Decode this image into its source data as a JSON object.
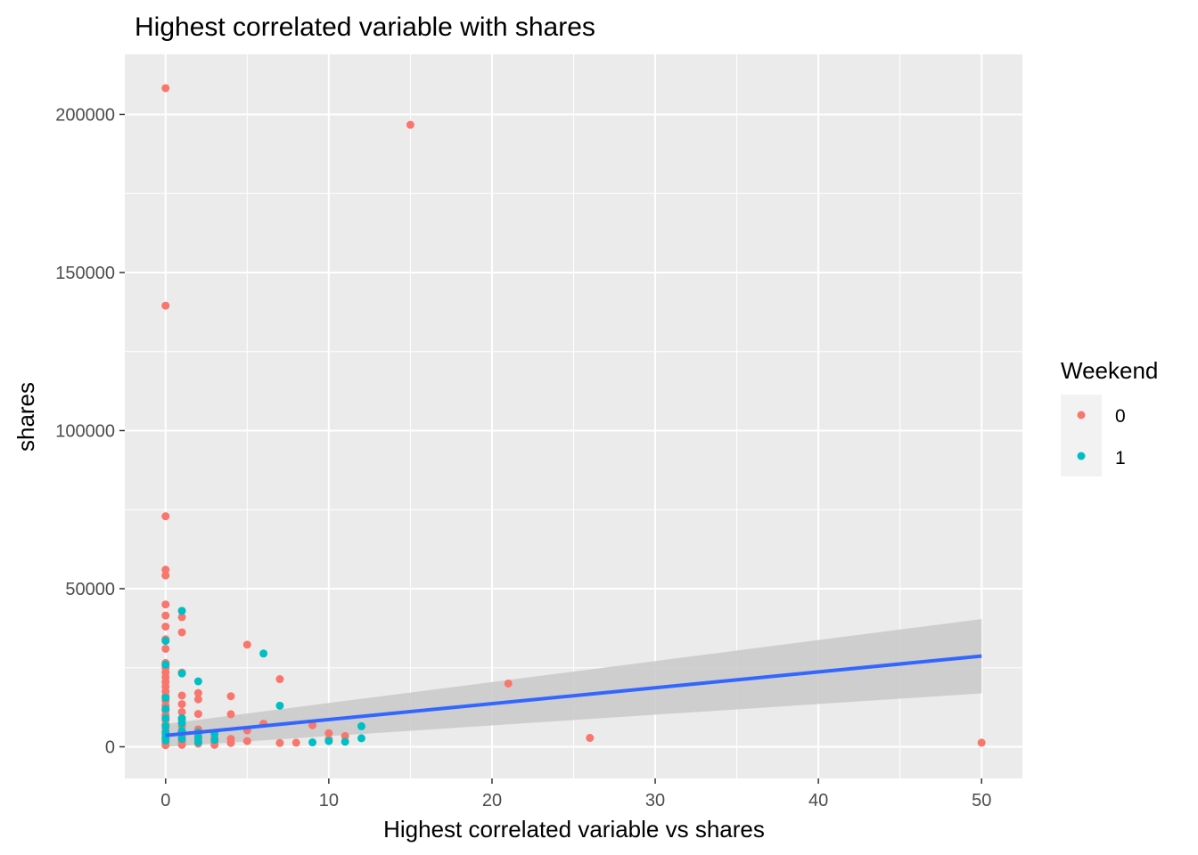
{
  "chart_data": {
    "type": "scatter",
    "title": "Highest correlated variable with shares",
    "xlabel": "Highest correlated variable vs shares",
    "ylabel": "shares",
    "xlim": [
      -2.5,
      52.5
    ],
    "ylim": [
      -10000,
      219000
    ],
    "x_ticks": [
      0,
      10,
      20,
      30,
      40,
      50
    ],
    "x_tick_labels": [
      "0",
      "10",
      "20",
      "30",
      "40",
      "50"
    ],
    "y_ticks": [
      0,
      50000,
      100000,
      150000,
      200000
    ],
    "y_tick_labels": [
      "0",
      "50000",
      "100000",
      "150000",
      "200000"
    ],
    "grid": true,
    "legend": {
      "title": "Weekend",
      "position": "right",
      "entries": [
        {
          "label": "0",
          "color": "#F8766D"
        },
        {
          "label": "1",
          "color": "#00BFC4"
        }
      ]
    },
    "series": [
      {
        "name": "0",
        "color": "#F8766D",
        "points": [
          [
            0,
            208300
          ],
          [
            0,
            139500
          ],
          [
            0,
            72900
          ],
          [
            0,
            56000
          ],
          [
            0,
            54200
          ],
          [
            0,
            45000
          ],
          [
            0,
            41500
          ],
          [
            0,
            38000
          ],
          [
            0,
            34000
          ],
          [
            0,
            31000
          ],
          [
            0,
            26500
          ],
          [
            0,
            25000
          ],
          [
            0,
            23500
          ],
          [
            0,
            22000
          ],
          [
            0,
            20500
          ],
          [
            0,
            19000
          ],
          [
            0,
            17500
          ],
          [
            0,
            16000
          ],
          [
            0,
            14500
          ],
          [
            0,
            13000
          ],
          [
            0,
            11500
          ],
          [
            0,
            10000
          ],
          [
            0,
            8500
          ],
          [
            0,
            7000
          ],
          [
            0,
            5500
          ],
          [
            0,
            4000
          ],
          [
            0,
            2500
          ],
          [
            0,
            1200
          ],
          [
            0,
            500
          ],
          [
            1,
            41000
          ],
          [
            1,
            36200
          ],
          [
            1,
            23500
          ],
          [
            1,
            16200
          ],
          [
            1,
            13500
          ],
          [
            1,
            11000
          ],
          [
            1,
            8500
          ],
          [
            1,
            6500
          ],
          [
            1,
            4500
          ],
          [
            1,
            3000
          ],
          [
            1,
            1500
          ],
          [
            1,
            600
          ],
          [
            2,
            17000
          ],
          [
            2,
            15000
          ],
          [
            2,
            10400
          ],
          [
            2,
            5500
          ],
          [
            2,
            3500
          ],
          [
            2,
            2000
          ],
          [
            2,
            1000
          ],
          [
            3,
            3000
          ],
          [
            3,
            1500
          ],
          [
            3,
            600
          ],
          [
            4,
            16000
          ],
          [
            4,
            10300
          ],
          [
            4,
            2500
          ],
          [
            4,
            1200
          ],
          [
            5,
            32300
          ],
          [
            5,
            5200
          ],
          [
            5,
            1800
          ],
          [
            6,
            7300
          ],
          [
            7,
            21400
          ],
          [
            7,
            1200
          ],
          [
            8,
            1300
          ],
          [
            9,
            6800
          ],
          [
            10,
            4300
          ],
          [
            10,
            2300
          ],
          [
            11,
            3400
          ],
          [
            15,
            196700
          ],
          [
            21,
            20000
          ],
          [
            26,
            2800
          ],
          [
            50,
            1300
          ]
        ]
      },
      {
        "name": "1",
        "color": "#00BFC4",
        "points": [
          [
            0,
            33500
          ],
          [
            0,
            26000
          ],
          [
            0,
            15500
          ],
          [
            0,
            12000
          ],
          [
            0,
            9000
          ],
          [
            0,
            6500
          ],
          [
            0,
            4500
          ],
          [
            0,
            3000
          ],
          [
            0,
            2000
          ],
          [
            1,
            43000
          ],
          [
            1,
            23200
          ],
          [
            1,
            9000
          ],
          [
            1,
            7500
          ],
          [
            1,
            5000
          ],
          [
            1,
            2500
          ],
          [
            2,
            20700
          ],
          [
            2,
            4500
          ],
          [
            2,
            2800
          ],
          [
            2,
            1500
          ],
          [
            3,
            4200
          ],
          [
            3,
            2200
          ],
          [
            6,
            29500
          ],
          [
            7,
            13000
          ],
          [
            9,
            1400
          ],
          [
            10,
            1800
          ],
          [
            11,
            1600
          ],
          [
            12,
            6500
          ],
          [
            12,
            2700
          ]
        ]
      }
    ],
    "trend": {
      "label": "linear fit",
      "color": "#3366FF",
      "band_color": "#C9C9C9",
      "x": [
        0,
        50
      ],
      "y": [
        3600,
        28700
      ],
      "ci_lower": [
        0,
        16900
      ],
      "ci_upper": [
        7200,
        40400
      ]
    }
  }
}
